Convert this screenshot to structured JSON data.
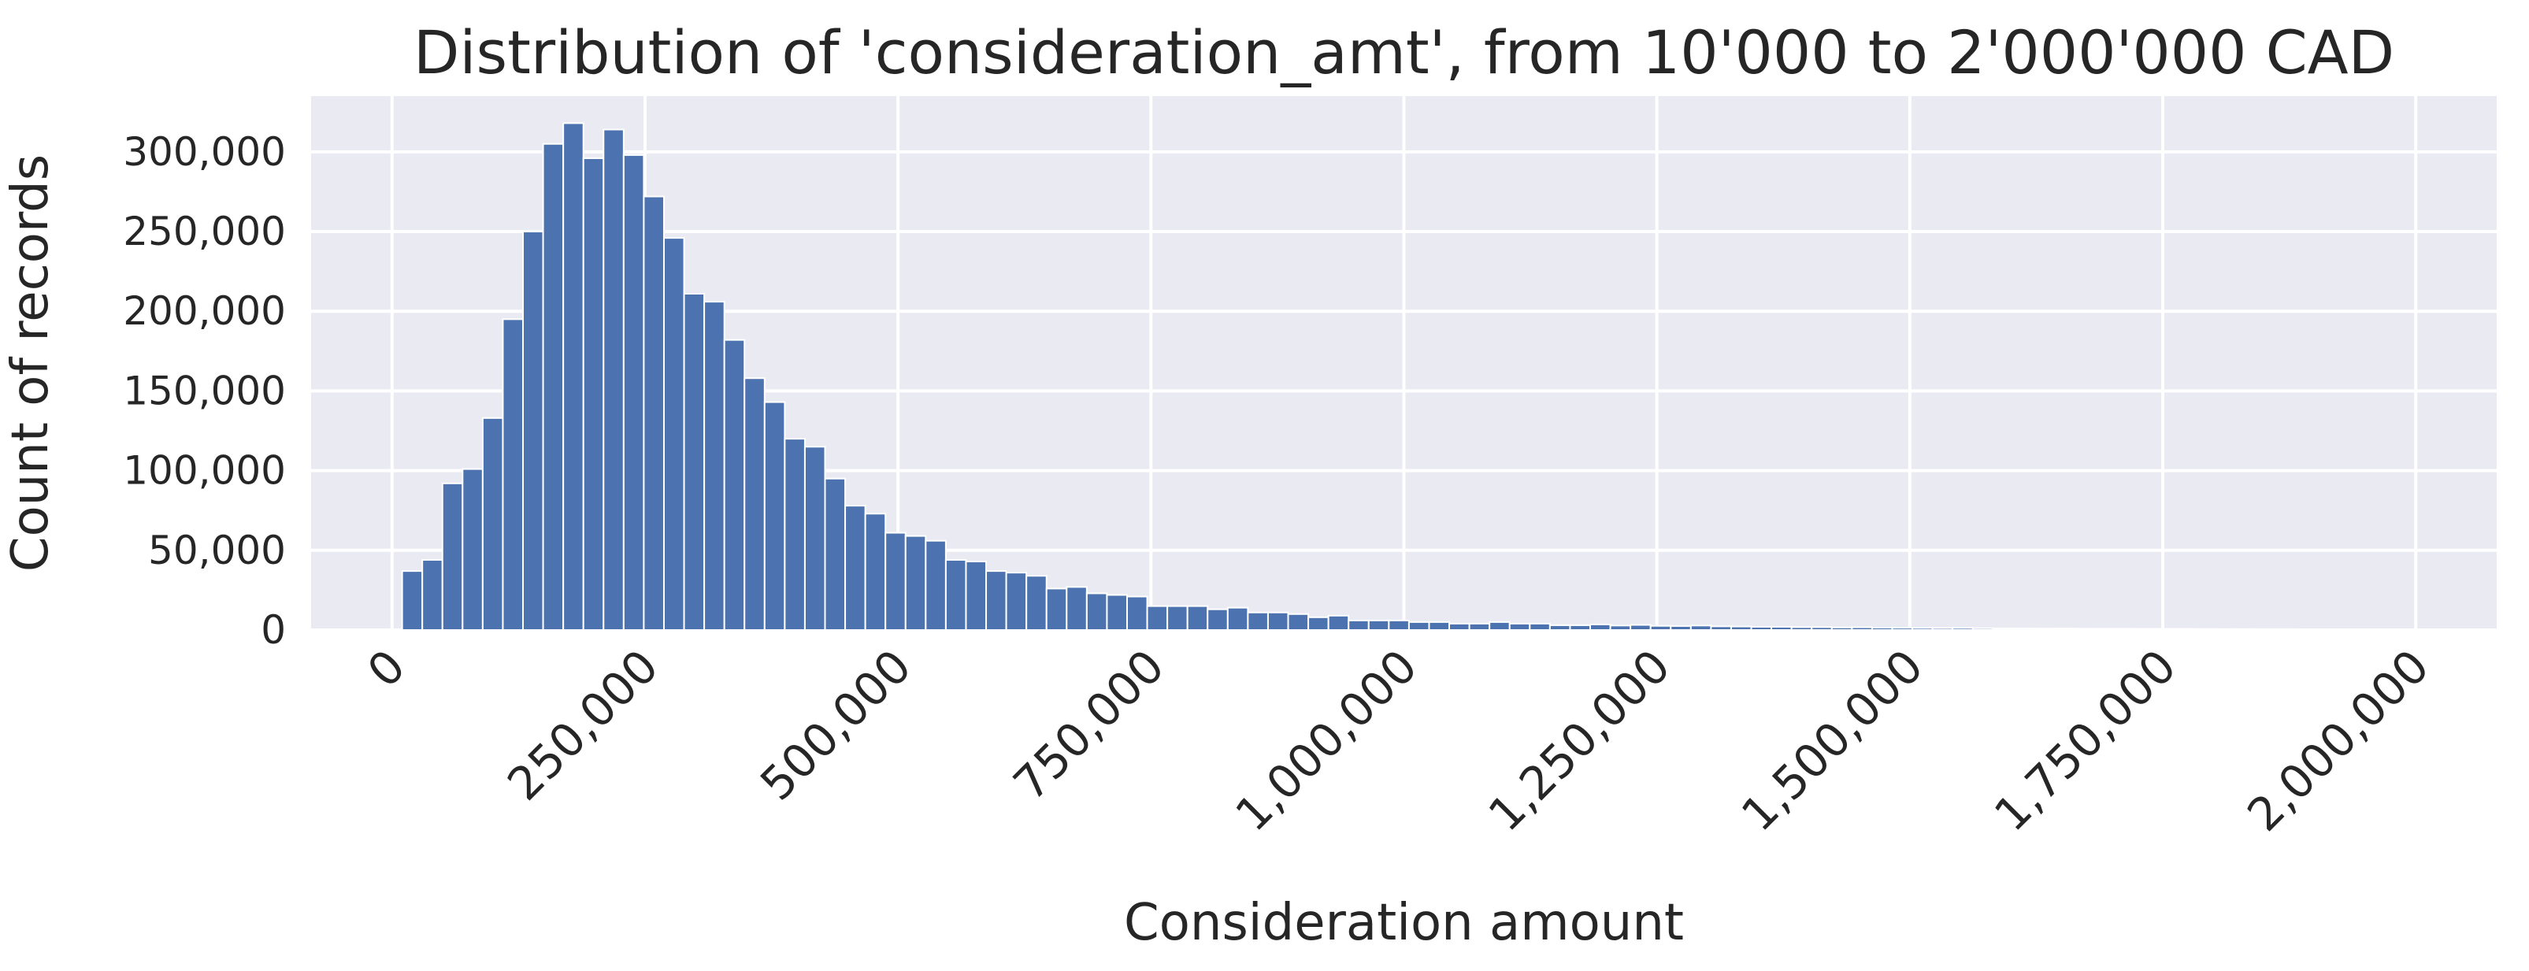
{
  "chart_data": {
    "type": "bar",
    "title": "Distribution of 'consideration_amt', from 10'000 to 2'000'000 CAD",
    "xlabel": "Consideration amount",
    "ylabel": "Count of records",
    "xlim": [
      -80000,
      2080000
    ],
    "ylim": [
      0,
      335000
    ],
    "grid": true,
    "legend": "none",
    "x_ticks": [
      0,
      250000,
      500000,
      750000,
      1000000,
      1250000,
      1500000,
      1750000,
      2000000
    ],
    "x_tick_labels": [
      "0",
      "250,000",
      "500,000",
      "750,000",
      "1,000,000",
      "1,250,000",
      "1,500,000",
      "1,750,000",
      "2,000,000"
    ],
    "y_ticks": [
      0,
      50000,
      100000,
      150000,
      200000,
      250000,
      300000
    ],
    "y_tick_labels": [
      "0",
      "50,000",
      "100,000",
      "150,000",
      "200,000",
      "250,000",
      "300,000"
    ],
    "bin_start": 10000,
    "bin_end": 2000000,
    "values": [
      37000,
      44000,
      92000,
      101000,
      133000,
      195000,
      250000,
      305000,
      318000,
      296000,
      314000,
      298000,
      272000,
      246000,
      211000,
      206000,
      182000,
      158000,
      143000,
      120000,
      115000,
      95000,
      78000,
      73000,
      61000,
      59000,
      56000,
      44000,
      43000,
      37000,
      36000,
      34000,
      26000,
      27000,
      23000,
      22000,
      21000,
      15000,
      15000,
      15000,
      13000,
      14000,
      11000,
      11000,
      10000,
      8000,
      9000,
      6000,
      6000,
      6000,
      5000,
      5000,
      4000,
      4000,
      5000,
      4000,
      4000,
      3000,
      3000,
      3500,
      2800,
      3200,
      2600,
      2500,
      2800,
      2300,
      2200,
      2000,
      2000,
      1800,
      1800,
      1600,
      1700,
      1500,
      1400,
      1300,
      1200,
      1300,
      1100,
      1000,
      1000,
      900,
      950,
      850,
      800,
      800,
      750,
      700,
      700,
      650,
      600,
      600,
      550,
      550,
      500,
      500,
      450,
      450,
      400,
      400
    ]
  }
}
